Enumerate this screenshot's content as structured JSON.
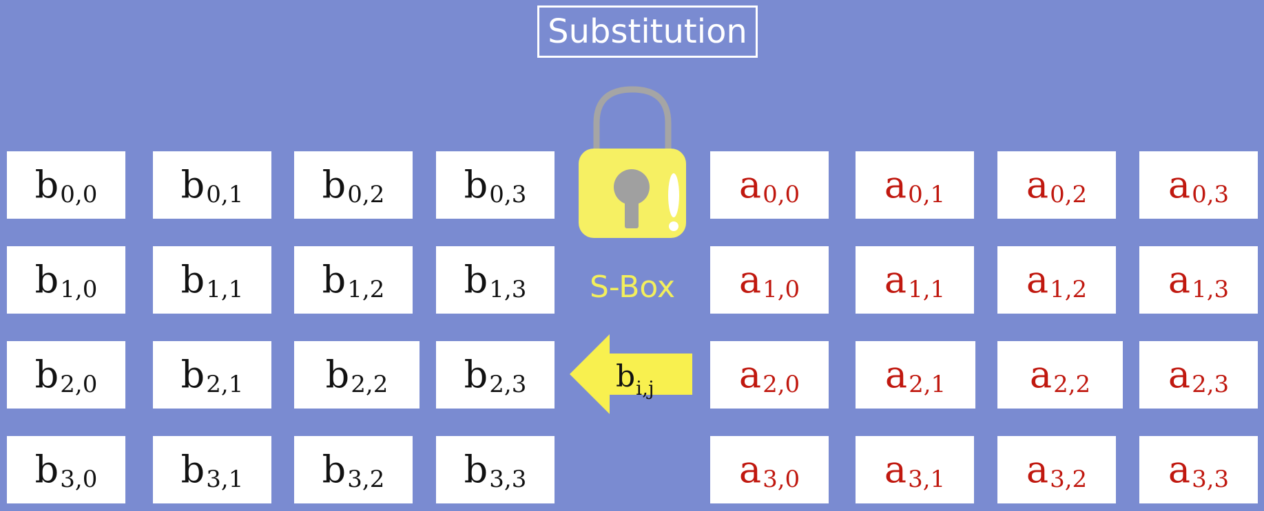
{
  "title": "Substitution",
  "sbox_label": "S-Box",
  "arrow_label": {
    "base": "b",
    "sub": "i,j"
  },
  "b_matrix": [
    [
      {
        "base": "b",
        "sub": "0,0"
      },
      {
        "base": "b",
        "sub": "0,1"
      },
      {
        "base": "b",
        "sub": "0,2"
      },
      {
        "base": "b",
        "sub": "0,3"
      }
    ],
    [
      {
        "base": "b",
        "sub": "1,0"
      },
      {
        "base": "b",
        "sub": "1,1"
      },
      {
        "base": "b",
        "sub": "1,2"
      },
      {
        "base": "b",
        "sub": "1,3"
      }
    ],
    [
      {
        "base": "b",
        "sub": "2,0"
      },
      {
        "base": "b",
        "sub": "2,1"
      },
      {
        "base": "b",
        "sub": "2,2"
      },
      {
        "base": "b",
        "sub": "2,3"
      }
    ],
    [
      {
        "base": "b",
        "sub": "3,0"
      },
      {
        "base": "b",
        "sub": "3,1"
      },
      {
        "base": "b",
        "sub": "3,2"
      },
      {
        "base": "b",
        "sub": "3,3"
      }
    ]
  ],
  "a_matrix": [
    [
      {
        "base": "a",
        "sub": "0,0"
      },
      {
        "base": "a",
        "sub": "0,1"
      },
      {
        "base": "a",
        "sub": "0,2"
      },
      {
        "base": "a",
        "sub": "0,3"
      }
    ],
    [
      {
        "base": "a",
        "sub": "1,0"
      },
      {
        "base": "a",
        "sub": "1,1"
      },
      {
        "base": "a",
        "sub": "1,2"
      },
      {
        "base": "a",
        "sub": "1,3"
      }
    ],
    [
      {
        "base": "a",
        "sub": "2,0"
      },
      {
        "base": "a",
        "sub": "2,1"
      },
      {
        "base": "a",
        "sub": "2,2"
      },
      {
        "base": "a",
        "sub": "2,3"
      }
    ],
    [
      {
        "base": "a",
        "sub": "3,0"
      },
      {
        "base": "a",
        "sub": "3,1"
      },
      {
        "base": "a",
        "sub": "3,2"
      },
      {
        "base": "a",
        "sub": "3,3"
      }
    ]
  ],
  "colors": {
    "background": "#7a8bd1",
    "b_text": "#111111",
    "a_text": "#c0180f",
    "lock_body": "#f6f063",
    "arrow": "#f8f04f",
    "sbox_text": "#f3ef5c"
  },
  "icons": {
    "lock": "padlock-icon",
    "arrow": "left-arrow-icon"
  }
}
